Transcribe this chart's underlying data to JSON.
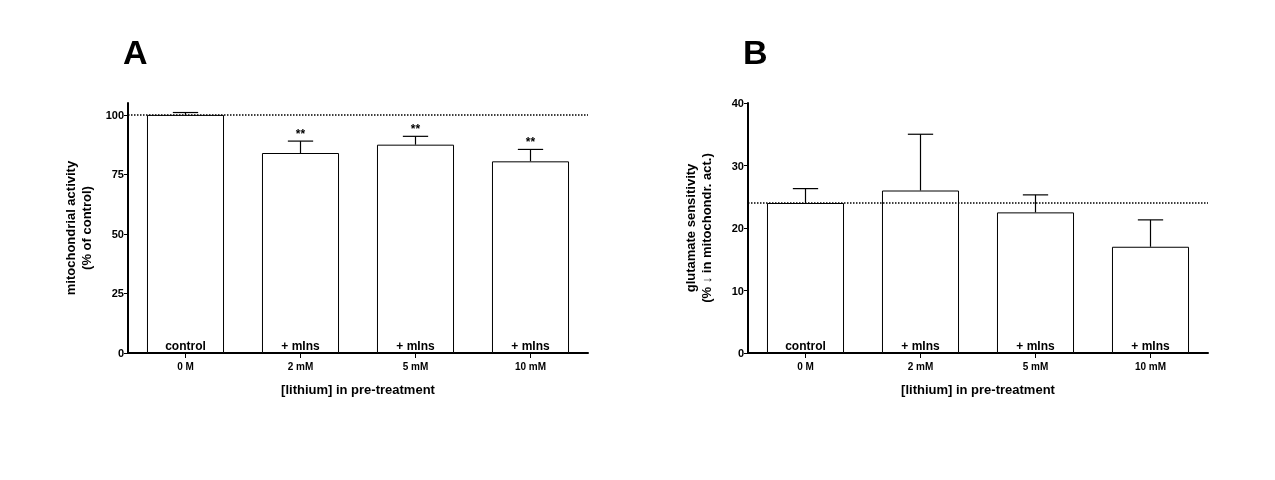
{
  "chart_data": [
    {
      "type": "bar",
      "title": "A",
      "xlabel": "[lithium] in pre-treatment",
      "ylabel": "mitochondrial activity\n(% of control)",
      "categories": [
        "0 M",
        "2 mM",
        "5 mM",
        "10 mM"
      ],
      "series": [
        {
          "color": "#ffffff",
          "values": [
            100,
            84,
            87.5,
            80.5
          ],
          "errors": [
            [
              100,
              101
            ],
            [
              84,
              89
            ],
            [
              87.5,
              91
            ],
            [
              80.5,
              85.5
            ]
          ]
        }
      ],
      "ylim": [
        0,
        105
      ],
      "yticks": [
        0,
        25,
        50,
        75,
        100
      ],
      "grid": false,
      "ref_lines": [
        {
          "axis": "y",
          "value": 100,
          "line_style": "dotted"
        }
      ],
      "annotations": [
        "control",
        "+ mIns",
        "+ mIns",
        "+ mIns",
        {
          "text": "**",
          "x": "2 mM",
          "y": 89
        },
        {
          "text": "**",
          "x": "5 mM",
          "y": 91
        },
        {
          "text": "**",
          "x": "10 mM",
          "y": 85.5
        }
      ]
    },
    {
      "type": "bar",
      "title": "B",
      "xlabel": "[lithium] in pre-treatment",
      "ylabel": "glutamate sensitivity\n(% ↓ in mitochondr. act.)",
      "categories": [
        "0 M",
        "2 mM",
        "5 mM",
        "10 mM"
      ],
      "series": [
        {
          "color": "#ffffff",
          "values": [
            24,
            26,
            22.5,
            17
          ],
          "errors": [
            [
              24,
              26.3
            ],
            [
              26,
              35
            ],
            [
              22.5,
              25.3
            ],
            [
              17,
              21.3
            ]
          ]
        }
      ],
      "ylim": [
        0,
        40
      ],
      "yticks": [
        0,
        10,
        20,
        30,
        40
      ],
      "grid": false,
      "ref_lines": [
        {
          "axis": "y",
          "value": 24,
          "line_style": "dotted"
        }
      ],
      "annotations": [
        "control",
        "+ mIns",
        "+ mIns",
        "+ mIns"
      ]
    }
  ]
}
